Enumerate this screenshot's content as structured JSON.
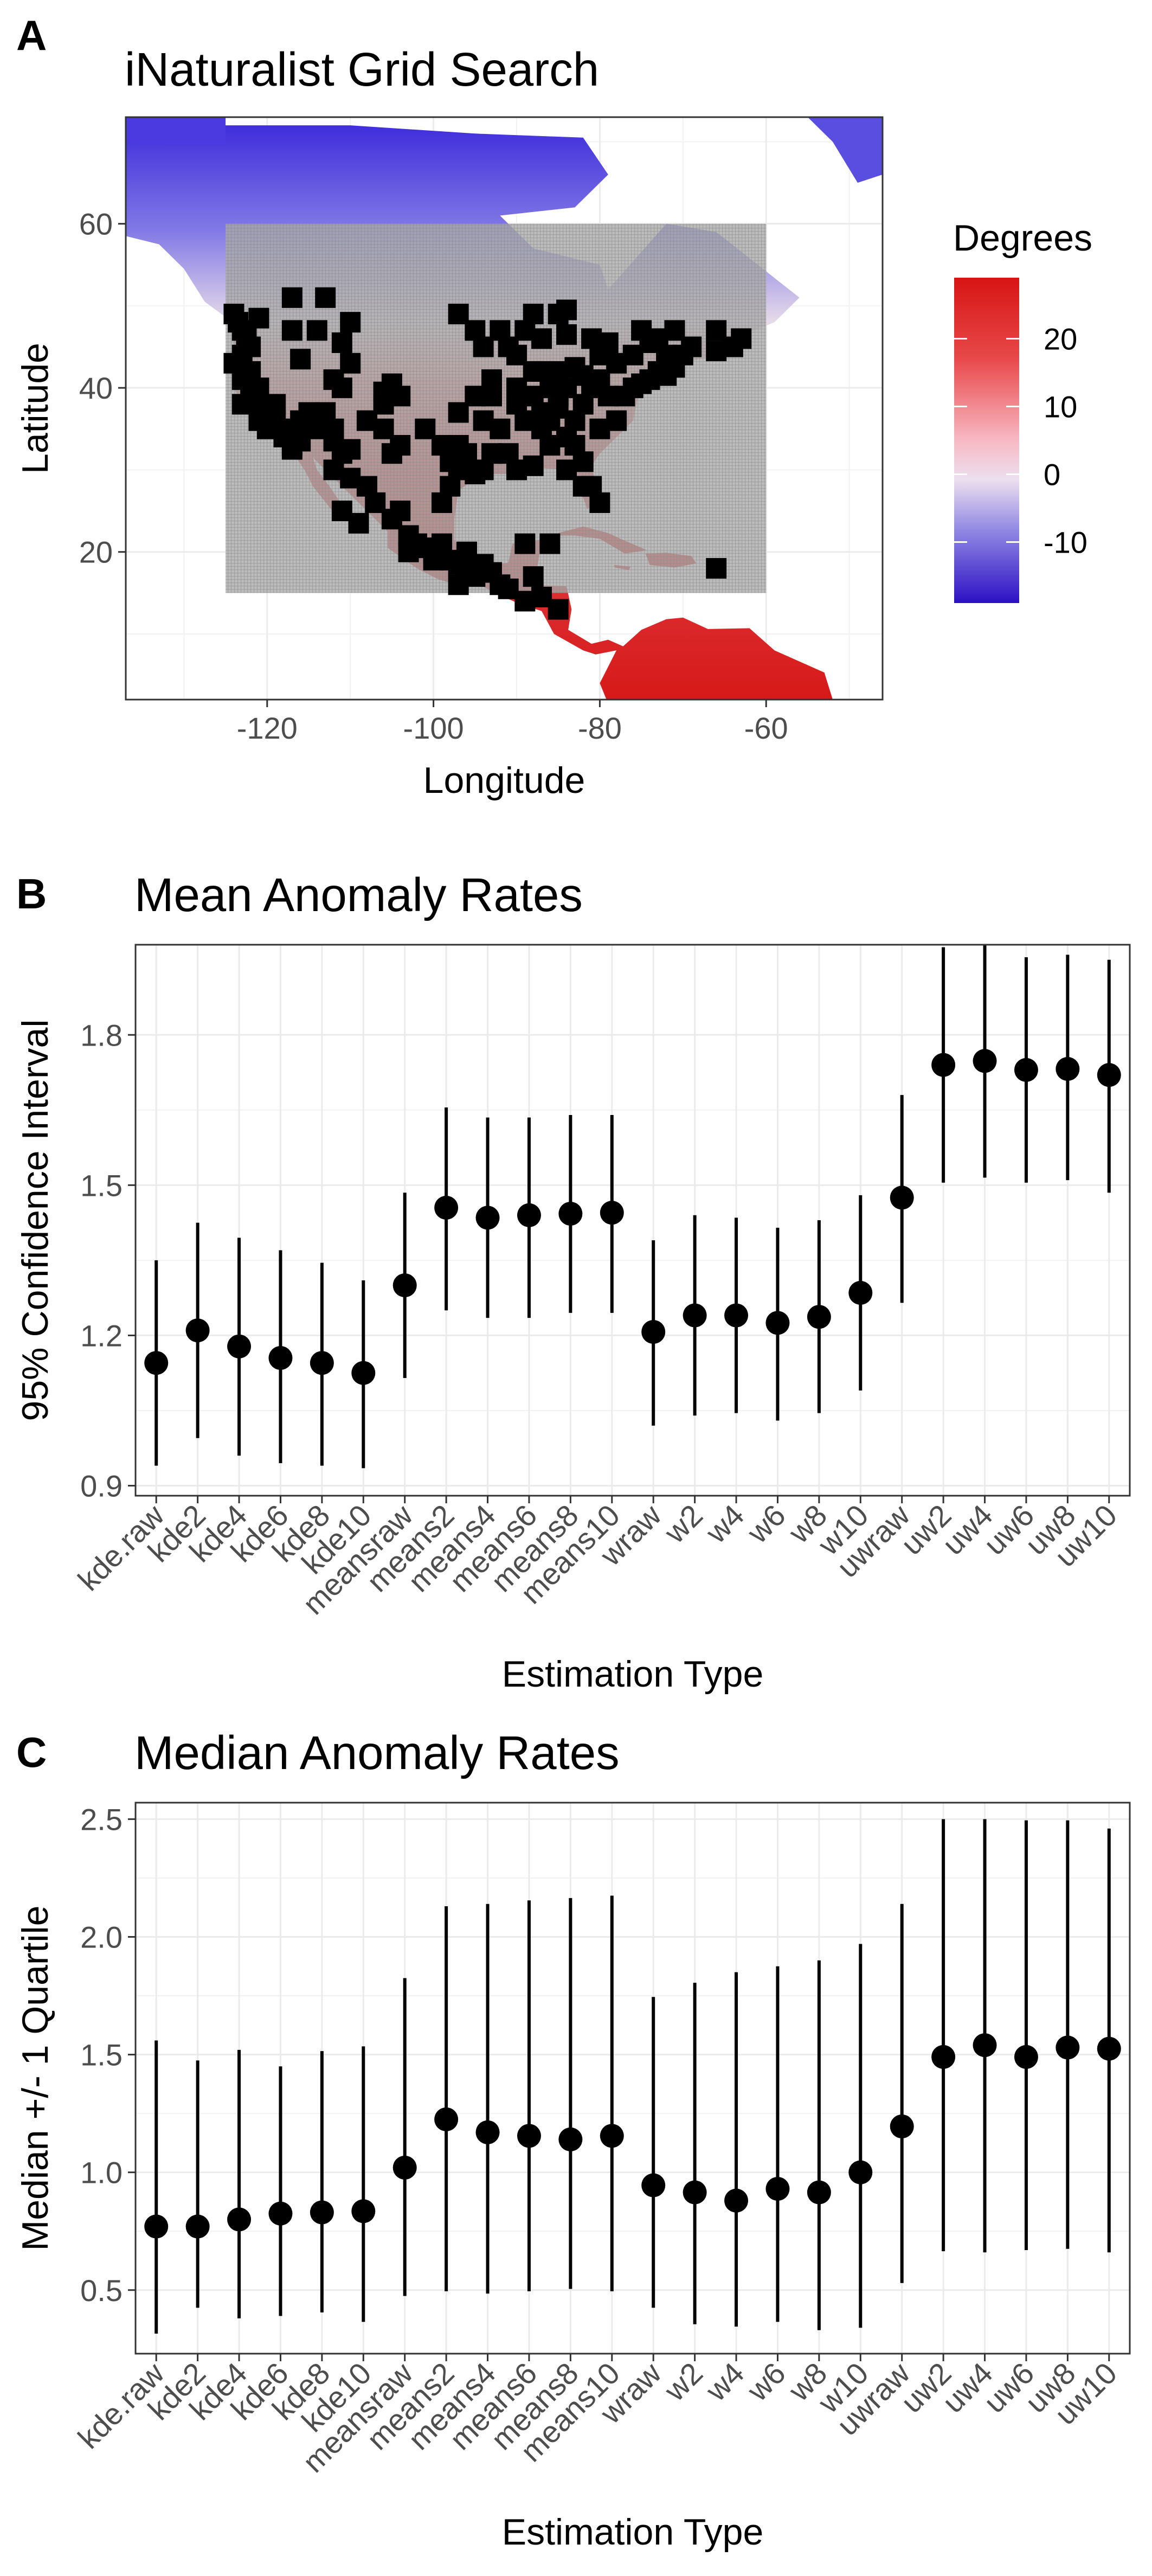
{
  "panels": {
    "a": {
      "label": "A",
      "title": "iNaturalist Grid Search"
    },
    "b": {
      "label": "B",
      "title": "Mean Anomaly Rates"
    },
    "c": {
      "label": "C",
      "title": "Median Anomaly Rates"
    }
  },
  "colors": {
    "warm": "#e0201c",
    "cold": "#3a1fd6",
    "mid": "#f2f2f2",
    "points": "#000000",
    "grid_box": "#9e9e9e",
    "panel_border": "#333333",
    "gridline": "#ebebeb"
  },
  "chart_data": [
    {
      "id": "map",
      "type": "scatter",
      "title": "iNaturalist Grid Search",
      "xlabel": "Longitude",
      "ylabel": "Latitude",
      "xlim": [
        -137,
        -46
      ],
      "ylim": [
        2,
        73
      ],
      "xticks": [
        -120,
        -100,
        -80,
        -60
      ],
      "yticks": [
        20,
        40,
        60
      ],
      "grid": true,
      "background_raster": "temperature of North America, red warm south to blue cold north",
      "search_grid": {
        "lon": [
          -125,
          -60
        ],
        "lat": [
          15,
          60
        ]
      },
      "legend": {
        "title": "Degrees",
        "placement": "right",
        "ticks": [
          20,
          10,
          0,
          -10
        ],
        "range": [
          -19,
          29
        ]
      },
      "points": [
        [
          -124,
          49
        ],
        [
          -123.5,
          48
        ],
        [
          -123,
          47
        ],
        [
          -122.5,
          46
        ],
        [
          -122,
          45
        ],
        [
          -123,
          44
        ],
        [
          -124,
          43
        ],
        [
          -122,
          42
        ],
        [
          -123,
          41
        ],
        [
          -121,
          40
        ],
        [
          -122,
          39
        ],
        [
          -123,
          38
        ],
        [
          -121,
          37.5
        ],
        [
          -120,
          37
        ],
        [
          -119,
          36
        ],
        [
          -118,
          35
        ],
        [
          -118,
          34
        ],
        [
          -117,
          33
        ],
        [
          -116,
          33.5
        ],
        [
          -117,
          32.5
        ],
        [
          -120,
          35
        ],
        [
          -121,
          36
        ],
        [
          -119,
          38
        ],
        [
          -116,
          36
        ],
        [
          -115,
          37
        ],
        [
          -112,
          33.5
        ],
        [
          -111,
          32
        ],
        [
          -110,
          32.5
        ],
        [
          -114,
          35
        ],
        [
          -112,
          35
        ],
        [
          -113,
          37
        ],
        [
          -111,
          40
        ],
        [
          -112,
          41
        ],
        [
          -116,
          43.5
        ],
        [
          -117,
          47
        ],
        [
          -114,
          47
        ],
        [
          -111,
          45.5
        ],
        [
          -110,
          43
        ],
        [
          -106,
          35
        ],
        [
          -105,
          32
        ],
        [
          -106,
          39.5
        ],
        [
          -104,
          39
        ],
        [
          -105,
          40.5
        ],
        [
          -117,
          51
        ],
        [
          -113,
          51
        ],
        [
          -110,
          48
        ],
        [
          -106,
          38
        ],
        [
          -108,
          36
        ],
        [
          -104,
          33
        ],
        [
          -112,
          30
        ],
        [
          -110,
          29
        ],
        [
          -108,
          28
        ],
        [
          -107,
          26
        ],
        [
          -105,
          24
        ],
        [
          -103,
          22
        ],
        [
          -102,
          21
        ],
        [
          -101,
          20.5
        ],
        [
          -100,
          20
        ],
        [
          -99,
          19.5
        ],
        [
          -98,
          19
        ],
        [
          -97,
          18.5
        ],
        [
          -96,
          17.5
        ],
        [
          -97,
          16
        ],
        [
          -95,
          17
        ],
        [
          -93,
          17.5
        ],
        [
          -99,
          21
        ],
        [
          -100,
          19
        ],
        [
          -103,
          20
        ],
        [
          -104,
          25
        ],
        [
          -109,
          23.5
        ],
        [
          -111,
          25
        ],
        [
          -99,
          26
        ],
        [
          -98,
          28
        ],
        [
          -97,
          30
        ],
        [
          -96,
          32
        ],
        [
          -97,
          33
        ],
        [
          -95,
          29.5
        ],
        [
          -94,
          30
        ],
        [
          -97,
          37
        ],
        [
          -95,
          39
        ],
        [
          -94,
          36
        ],
        [
          -92,
          35
        ],
        [
          -90,
          38
        ],
        [
          -93,
          41
        ],
        [
          -94,
          45
        ],
        [
          -91,
          45
        ],
        [
          -88,
          42
        ],
        [
          -87,
          42
        ],
        [
          -86,
          40
        ],
        [
          -85,
          39
        ],
        [
          -84,
          34
        ],
        [
          -83,
          33
        ],
        [
          -82,
          31
        ],
        [
          -81,
          28
        ],
        [
          -80,
          26
        ],
        [
          -82,
          28
        ],
        [
          -84,
          30
        ],
        [
          -86,
          33
        ],
        [
          -88,
          30.5
        ],
        [
          -87,
          35
        ],
        [
          -86,
          36
        ],
        [
          -85,
          37.5
        ],
        [
          -83,
          36
        ],
        [
          -80,
          35
        ],
        [
          -78,
          36
        ],
        [
          -77,
          39
        ],
        [
          -76,
          40
        ],
        [
          -75,
          40.5
        ],
        [
          -74,
          41
        ],
        [
          -73,
          42
        ],
        [
          -72,
          41.5
        ],
        [
          -71,
          42.5
        ],
        [
          -70,
          44
        ],
        [
          -69,
          45
        ],
        [
          -72,
          44
        ],
        [
          -74,
          45.5
        ],
        [
          -76,
          44
        ],
        [
          -78,
          43
        ],
        [
          -80,
          44
        ],
        [
          -79,
          45.5
        ],
        [
          -81,
          46
        ],
        [
          -84,
          46.5
        ],
        [
          -83,
          42.5
        ],
        [
          -82,
          41.5
        ],
        [
          -81,
          40
        ],
        [
          -85,
          42
        ],
        [
          -87,
          46
        ],
        [
          -89,
          47
        ],
        [
          -92,
          47
        ],
        [
          -90,
          44
        ],
        [
          -97,
          49
        ],
        [
          -95,
          47
        ],
        [
          -88,
          49
        ],
        [
          -85,
          49
        ],
        [
          -84,
          49.5
        ],
        [
          -75,
          47
        ],
        [
          -73,
          46
        ],
        [
          -71,
          47
        ],
        [
          -66,
          44.5
        ],
        [
          -64,
          45
        ],
        [
          -66,
          47
        ],
        [
          -63,
          46
        ],
        [
          -79,
          39
        ],
        [
          -82,
          38
        ],
        [
          -84,
          40
        ],
        [
          -88,
          39
        ],
        [
          -89,
          36
        ],
        [
          -91,
          32
        ],
        [
          -90,
          30
        ],
        [
          -93,
          32
        ],
        [
          -96,
          30
        ],
        [
          -98,
          31
        ],
        [
          -93,
          39
        ],
        [
          -90,
          40
        ],
        [
          -87,
          37
        ],
        [
          -80,
          41
        ],
        [
          -99,
          33
        ],
        [
          -101,
          35
        ],
        [
          -96,
          20
        ],
        [
          -94,
          18.5
        ],
        [
          -92,
          16
        ],
        [
          -91,
          15.5
        ],
        [
          -89,
          14
        ],
        [
          -87,
          14.5
        ],
        [
          -85,
          13
        ],
        [
          -88,
          17
        ],
        [
          -86,
          21
        ],
        [
          -89,
          21
        ],
        [
          -66,
          18
        ],
        [
          -121,
          48.5
        ]
      ]
    },
    {
      "id": "mean",
      "type": "scatter",
      "title": "Mean Anomaly Rates",
      "xlabel": "Estimation Type",
      "ylabel": "95% Confidence Interval",
      "ylim": [
        0.88,
        1.98
      ],
      "yticks": [
        0.9,
        1.2,
        1.5,
        1.8
      ],
      "grid": true,
      "categories": [
        "kde.raw",
        "kde2",
        "kde4",
        "kde6",
        "kde8",
        "kde10",
        "meansraw",
        "means2",
        "means4",
        "means6",
        "means8",
        "means10",
        "wraw",
        "w2",
        "w4",
        "w6",
        "w8",
        "w10",
        "uwraw",
        "uw2",
        "uw4",
        "uw6",
        "uw8",
        "uw10"
      ],
      "values": [
        1.145,
        1.21,
        1.178,
        1.155,
        1.145,
        1.125,
        1.3,
        1.455,
        1.435,
        1.44,
        1.443,
        1.445,
        1.207,
        1.24,
        1.24,
        1.225,
        1.237,
        1.285,
        1.475,
        1.74,
        1.748,
        1.73,
        1.732,
        1.72
      ],
      "lower": [
        0.94,
        0.995,
        0.96,
        0.945,
        0.94,
        0.935,
        1.115,
        1.25,
        1.235,
        1.235,
        1.245,
        1.245,
        1.02,
        1.04,
        1.045,
        1.03,
        1.045,
        1.09,
        1.265,
        1.505,
        1.515,
        1.505,
        1.51,
        1.485
      ],
      "upper": [
        1.35,
        1.425,
        1.395,
        1.37,
        1.345,
        1.31,
        1.485,
        1.655,
        1.635,
        1.635,
        1.64,
        1.64,
        1.39,
        1.44,
        1.435,
        1.415,
        1.43,
        1.48,
        1.68,
        1.975,
        1.98,
        1.955,
        1.96,
        1.95
      ]
    },
    {
      "id": "median",
      "type": "scatter",
      "title": "Median Anomaly Rates",
      "xlabel": "Estimation Type",
      "ylabel": "Median +/- 1 Quartile",
      "ylim": [
        0.23,
        2.57
      ],
      "yticks": [
        0.5,
        1.0,
        1.5,
        2.0,
        2.5
      ],
      "ytick_labels": [
        "0.5",
        "1.0",
        "1.5",
        "2.0",
        "2.5"
      ],
      "grid": true,
      "categories": [
        "kde.raw",
        "kde2",
        "kde4",
        "kde6",
        "kde8",
        "kde10",
        "meansraw",
        "means2",
        "means4",
        "means6",
        "means8",
        "means10",
        "wraw",
        "w2",
        "w4",
        "w6",
        "w8",
        "w10",
        "uwraw",
        "uw2",
        "uw4",
        "uw6",
        "uw8",
        "uw10"
      ],
      "values": [
        0.77,
        0.77,
        0.8,
        0.825,
        0.83,
        0.835,
        1.02,
        1.225,
        1.17,
        1.155,
        1.14,
        1.155,
        0.945,
        0.915,
        0.88,
        0.93,
        0.915,
        1.0,
        1.195,
        1.49,
        1.54,
        1.49,
        1.53,
        1.525
      ],
      "lower": [
        0.315,
        0.425,
        0.38,
        0.39,
        0.405,
        0.365,
        0.475,
        0.495,
        0.485,
        0.495,
        0.505,
        0.495,
        0.425,
        0.355,
        0.345,
        0.365,
        0.33,
        0.34,
        0.53,
        0.665,
        0.66,
        0.67,
        0.675,
        0.66
      ],
      "upper": [
        1.56,
        1.475,
        1.52,
        1.45,
        1.515,
        1.535,
        1.825,
        2.13,
        2.14,
        2.155,
        2.165,
        2.175,
        1.745,
        1.805,
        1.85,
        1.875,
        1.9,
        1.97,
        2.14,
        2.5,
        2.5,
        2.495,
        2.495,
        2.46
      ]
    }
  ]
}
